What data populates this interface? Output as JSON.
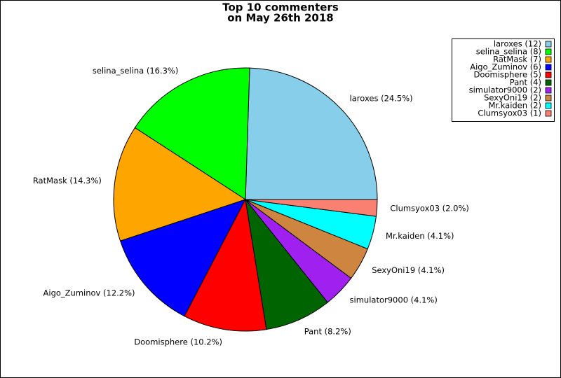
{
  "chart_data": {
    "type": "pie",
    "title": [
      "Top 10 commenters",
      "on May 26th 2018"
    ],
    "categories": [
      "laroxes (12)",
      "selina_selina (8)",
      "RatMask (7)",
      "Aigo_Zuminov (6)",
      "Doomisphere (5)",
      "Pant (4)",
      "simulator9000 (2)",
      "SexyOni19 (2)",
      "Mr.kaiden (2)",
      "Clumsyox03 (1)"
    ],
    "values": [
      12,
      8,
      7,
      6,
      5,
      4,
      2,
      2,
      2,
      1
    ],
    "slice_labels": [
      "laroxes (24.5%)",
      "selina_selina (16.3%)",
      "RatMask (14.3%)",
      "Aigo_Zuminov (12.2%)",
      "Doomisphere (10.2%)",
      "Pant (8.2%)",
      "simulator9000 (4.1%)",
      "SexyOni19 (4.1%)",
      "Mr.kaiden (4.1%)",
      "Clumsyox03 (2.0%)"
    ],
    "colors": [
      "#87ceeb",
      "#00ff00",
      "#ffa500",
      "#0000ff",
      "#ff0000",
      "#006400",
      "#a020f0",
      "#cd853f",
      "#00ffff",
      "#fa8072"
    ],
    "legend": "upper right"
  }
}
